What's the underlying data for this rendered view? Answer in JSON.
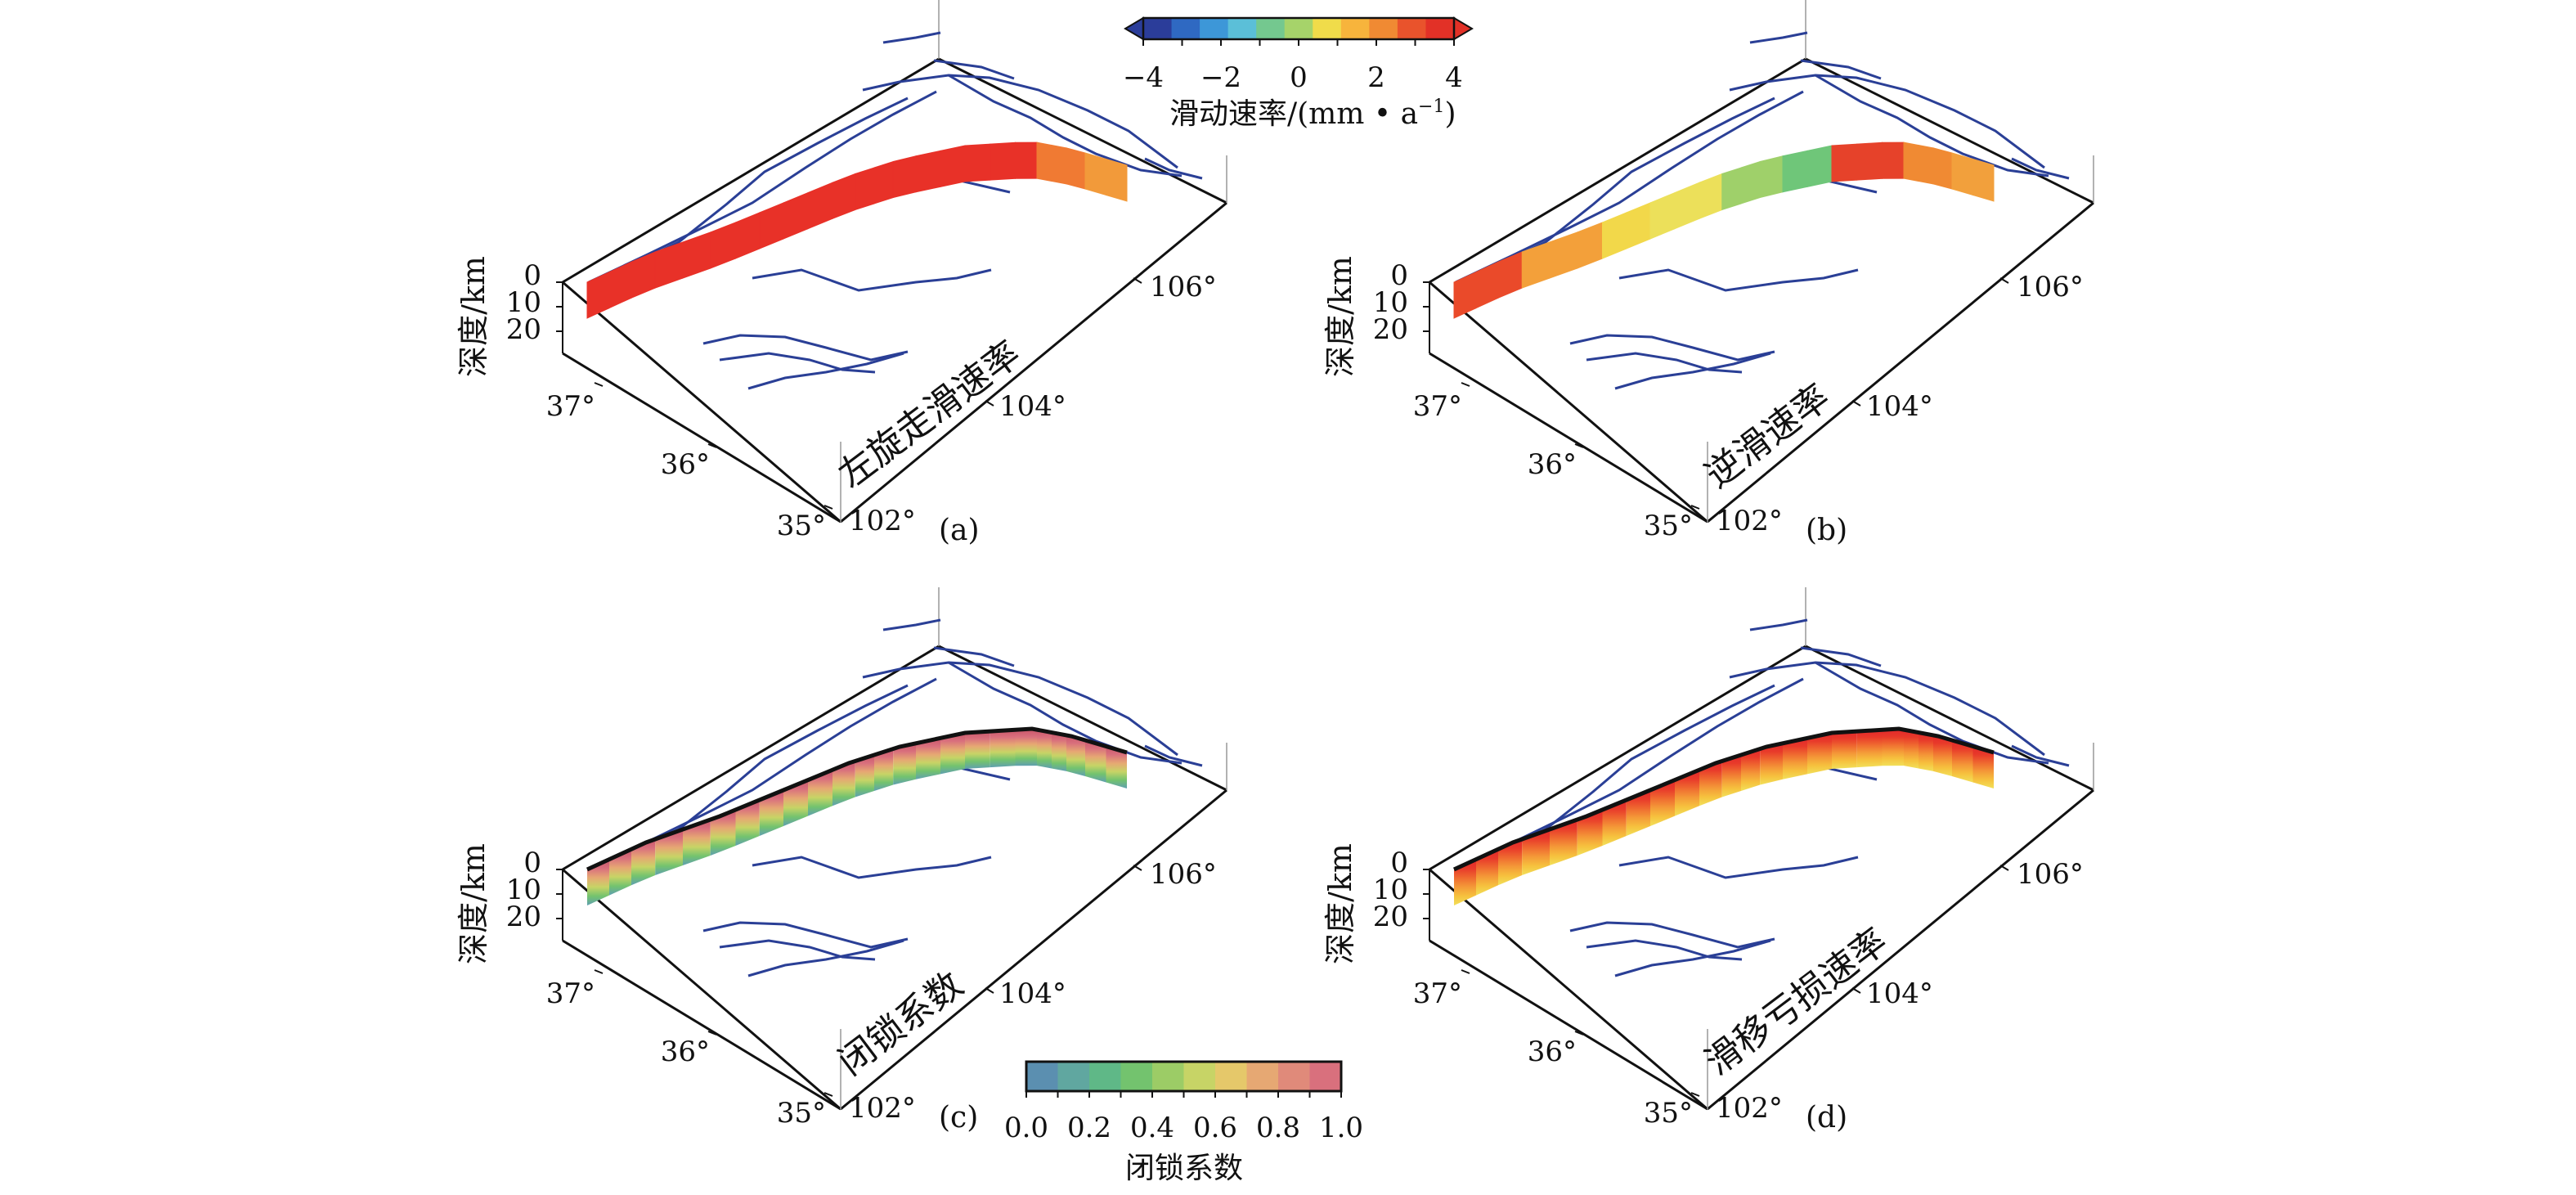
{
  "colorbars": {
    "slip_rate": {
      "ticks": [
        "−4",
        "−2",
        "0",
        "2",
        "4"
      ],
      "title": "滑动速率/(mm • a",
      "title_sup": "−1",
      "title_tail": ")",
      "colors": [
        "#2b3d9a",
        "#2f69c2",
        "#3d97d8",
        "#5bbfd8",
        "#74c88f",
        "#a6d36a",
        "#f0dc4a",
        "#f7b43c",
        "#f08a33",
        "#e9532c",
        "#e23127"
      ]
    },
    "locking": {
      "ticks": [
        "0.0",
        "0.2",
        "0.4",
        "0.6",
        "0.8",
        "1.0"
      ],
      "title": "闭锁系数",
      "colors": [
        "#5b8fb0",
        "#60a7a0",
        "#5fb887",
        "#73c36e",
        "#9ccc66",
        "#c7d466",
        "#e5c86a",
        "#e6a873",
        "#e08a7a",
        "#d9707d"
      ]
    }
  },
  "panels": [
    {
      "letter": "(a)",
      "name": "左旋走滑速率",
      "depth_label": "深度/km",
      "depth_ticks": [
        "0",
        "10",
        "20"
      ],
      "lat_ticks": [
        "37°",
        "36°",
        "35°"
      ],
      "lon_ticks": [
        "102°",
        "104°",
        "106°"
      ],
      "segment_colors": [
        "#e83128",
        "#e83128",
        "#e83128",
        "#e83128",
        "#e83128",
        "#e83128",
        "#e83128",
        "#f07a33",
        "#f29a3a"
      ]
    },
    {
      "letter": "(b)",
      "name": "逆滑速率",
      "depth_label": "深度/km",
      "depth_ticks": [
        "0",
        "10",
        "20"
      ],
      "lat_ticks": [
        "37°",
        "36°",
        "35°"
      ],
      "lon_ticks": [
        "102°",
        "104°",
        "106°"
      ],
      "segment_colors": [
        "#ea4a2a",
        "#f3a03a",
        "#f2d84a",
        "#ece05a",
        "#9fd06a",
        "#6fc679",
        "#e6422a",
        "#f08a33",
        "#f2a03c"
      ]
    },
    {
      "letter": "(c)",
      "name": "闭锁系数",
      "depth_label": "深度/km",
      "depth_ticks": [
        "0",
        "10",
        "20"
      ],
      "lat_ticks": [
        "37°",
        "36°",
        "35°"
      ],
      "lon_ticks": [
        "102°",
        "104°",
        "106°"
      ],
      "gradient": [
        "#c9566a",
        "#d9707d",
        "#e6a873",
        "#c7d466",
        "#73c36e",
        "#5f9fb0"
      ]
    },
    {
      "letter": "(d)",
      "name": "滑移亏损速率",
      "depth_label": "深度/km",
      "depth_ticks": [
        "0",
        "10",
        "20"
      ],
      "lat_ticks": [
        "37°",
        "36°",
        "35°"
      ],
      "lon_ticks": [
        "102°",
        "104°",
        "106°"
      ],
      "gradient": [
        "#e2282a",
        "#e83a2a",
        "#ef6a30",
        "#f49a38",
        "#f6c23e",
        "#f2e05a"
      ]
    }
  ],
  "style": {
    "fault_color": "#2a3f96",
    "frame_color": "#111111"
  }
}
